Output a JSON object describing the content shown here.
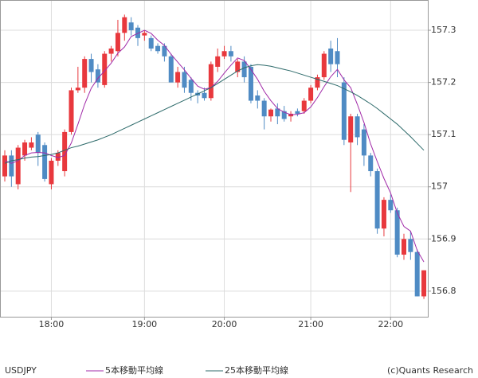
{
  "chart_data": {
    "type": "candlestick",
    "instrument": "USDJPY",
    "copyright": "(c)Quants Research",
    "categories": [
      null,
      null,
      null,
      null,
      null,
      null,
      null,
      "18:00",
      null,
      null,
      null,
      null,
      null,
      null,
      null,
      null,
      null,
      null,
      null,
      null,
      null,
      "19:00",
      null,
      null,
      null,
      null,
      null,
      null,
      null,
      null,
      null,
      null,
      null,
      "20:00",
      null,
      null,
      null,
      null,
      null,
      null,
      null,
      null,
      null,
      null,
      null,
      null,
      "21:00",
      null,
      null,
      null,
      null,
      null,
      null,
      null,
      null,
      null,
      null,
      null,
      "22:00",
      null,
      null,
      null,
      null,
      null
    ],
    "open": [
      157.02,
      157.06,
      157.005,
      157.06,
      157.075,
      157.1,
      157.08,
      157.005,
      157.05,
      157.03,
      157.105,
      157.185,
      157.19,
      157.245,
      157.225,
      157.195,
      157.255,
      157.26,
      157.295,
      157.315,
      157.305,
      157.29,
      157.285,
      157.27,
      157.27,
      157.25,
      157.2,
      157.22,
      157.205,
      157.18,
      157.18,
      157.17,
      157.23,
      157.25,
      157.26,
      157.22,
      157.24,
      157.23,
      157.175,
      157.165,
      157.135,
      157.15,
      157.145,
      157.135,
      157.145,
      157.145,
      157.165,
      157.19,
      157.21,
      157.265,
      157.26,
      157.2,
      157.085,
      157.135,
      157.11,
      157.06,
      157.03,
      156.92,
      156.975,
      156.955,
      156.87,
      156.9,
      156.875,
      156.79
    ],
    "high": [
      157.07,
      157.07,
      157.08,
      157.09,
      157.095,
      157.105,
      157.085,
      157.055,
      157.07,
      157.11,
      157.19,
      157.23,
      157.25,
      157.255,
      157.235,
      157.26,
      157.27,
      157.32,
      157.33,
      157.325,
      157.31,
      157.3,
      157.29,
      157.275,
      157.275,
      157.255,
      157.23,
      157.23,
      157.21,
      157.185,
      157.19,
      157.24,
      157.265,
      157.27,
      157.27,
      157.245,
      157.25,
      157.235,
      157.185,
      157.17,
      157.15,
      157.16,
      157.155,
      157.145,
      157.15,
      157.17,
      157.195,
      157.215,
      157.26,
      157.28,
      157.285,
      157.21,
      157.14,
      157.14,
      157.12,
      157.065,
      157.035,
      156.98,
      156.985,
      156.96,
      156.91,
      156.915,
      156.88,
      156.84
    ],
    "low": [
      157.01,
      157.0,
      156.995,
      157.05,
      157.07,
      157.04,
      157.01,
      156.995,
      157.04,
      157.02,
      157.1,
      157.18,
      157.18,
      157.2,
      157.19,
      157.19,
      157.24,
      157.25,
      157.28,
      157.29,
      157.27,
      157.28,
      157.26,
      157.255,
      157.24,
      157.2,
      157.19,
      157.18,
      157.165,
      157.16,
      157.165,
      157.165,
      157.22,
      157.245,
      157.24,
      157.21,
      157.2,
      157.16,
      157.15,
      157.11,
      157.125,
      157.12,
      157.125,
      157.125,
      157.135,
      157.14,
      157.16,
      157.185,
      157.205,
      157.22,
      157.21,
      157.08,
      156.99,
      157.08,
      157.04,
      157.02,
      156.91,
      156.905,
      156.95,
      156.865,
      156.86,
      156.86,
      156.79,
      156.785
    ],
    "close": [
      157.06,
      157.02,
      157.075,
      157.085,
      157.085,
      157.065,
      157.015,
      157.05,
      157.065,
      157.105,
      157.185,
      157.19,
      157.245,
      157.22,
      157.2,
      157.255,
      157.265,
      157.295,
      157.325,
      157.3,
      157.285,
      157.295,
      157.265,
      157.26,
      157.25,
      157.2,
      157.22,
      157.19,
      157.18,
      157.175,
      157.17,
      157.235,
      157.25,
      157.26,
      157.25,
      157.24,
      157.21,
      157.165,
      157.165,
      157.135,
      157.148,
      157.135,
      157.13,
      157.14,
      157.14,
      157.165,
      157.19,
      157.21,
      157.255,
      157.235,
      157.235,
      157.09,
      157.135,
      157.095,
      157.06,
      157.03,
      156.92,
      156.975,
      156.955,
      156.87,
      156.9,
      156.875,
      156.79,
      156.84
    ],
    "up_color": "#e8383d",
    "down_color": "#4f8bc4",
    "series": [
      {
        "name": "5本移動平均線",
        "color": "#a12aa8",
        "values": [
          157.05,
          157.045,
          157.05,
          157.06,
          157.065,
          157.066,
          157.065,
          157.06,
          157.056,
          157.06,
          157.084,
          157.12,
          157.158,
          157.189,
          157.208,
          157.222,
          157.237,
          157.256,
          157.268,
          157.288,
          157.294,
          157.3,
          157.294,
          157.281,
          157.271,
          157.254,
          157.239,
          157.224,
          157.208,
          157.193,
          157.187,
          157.19,
          157.202,
          157.218,
          157.233,
          157.247,
          157.242,
          157.225,
          157.206,
          157.183,
          157.165,
          157.15,
          157.143,
          157.138,
          157.139,
          157.142,
          157.153,
          157.171,
          157.192,
          157.211,
          157.225,
          157.205,
          157.19,
          157.158,
          157.123,
          157.082,
          157.048,
          157.016,
          156.988,
          156.95,
          156.924,
          156.915,
          156.878,
          156.856
        ]
      },
      {
        "name": "25本移動平均線",
        "color": "#2d6a6a",
        "values": [
          157.045,
          157.05,
          157.052,
          157.055,
          157.057,
          157.058,
          157.06,
          157.062,
          157.065,
          157.07,
          157.075,
          157.078,
          157.082,
          157.086,
          157.09,
          157.095,
          157.1,
          157.106,
          157.112,
          157.118,
          157.124,
          157.13,
          157.136,
          157.142,
          157.148,
          157.154,
          157.16,
          157.166,
          157.172,
          157.178,
          157.184,
          157.19,
          157.198,
          157.206,
          157.214,
          157.222,
          157.228,
          157.232,
          157.234,
          157.233,
          157.231,
          157.228,
          157.225,
          157.222,
          157.218,
          157.214,
          157.21,
          157.206,
          157.202,
          157.198,
          157.194,
          157.188,
          157.182,
          157.175,
          157.167,
          157.159,
          157.15,
          157.14,
          157.13,
          157.12,
          157.108,
          157.096,
          157.083,
          157.07
        ]
      }
    ],
    "ylim": [
      156.751,
      157.358
    ],
    "yticks": [
      157.3,
      157.2,
      157.1,
      157.0,
      156.9,
      156.8
    ],
    "grid": true
  }
}
